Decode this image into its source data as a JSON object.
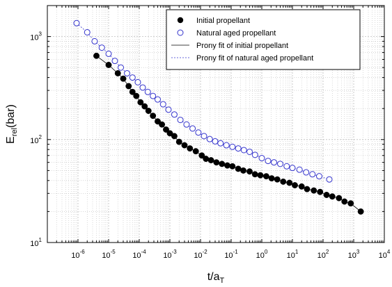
{
  "chart_data": {
    "type": "scatter",
    "title": "",
    "xlabel": "t/a",
    "xlabel_sub": "T",
    "ylabel": "E",
    "ylabel_sub": "rel",
    "ylabel_unit": "(bar)",
    "xscale": "log",
    "yscale": "log",
    "xlim": [
      1e-07,
      10000
    ],
    "ylim": [
      10,
      2000
    ],
    "x_ticks": [
      {
        "base": "10",
        "exp": "-6",
        "value": 1e-06
      },
      {
        "base": "10",
        "exp": "-5",
        "value": 1e-05
      },
      {
        "base": "10",
        "exp": "-4",
        "value": 0.0001
      },
      {
        "base": "10",
        "exp": "-3",
        "value": 0.001
      },
      {
        "base": "10",
        "exp": "-2",
        "value": 0.01
      },
      {
        "base": "10",
        "exp": "-1",
        "value": 0.1
      },
      {
        "base": "10",
        "exp": "0",
        "value": 1
      },
      {
        "base": "10",
        "exp": "1",
        "value": 10
      },
      {
        "base": "10",
        "exp": "2",
        "value": 100
      },
      {
        "base": "10",
        "exp": "3",
        "value": 1000
      },
      {
        "base": "10",
        "exp": "4",
        "value": 10000
      }
    ],
    "y_ticks": [
      {
        "base": "10",
        "exp": "1",
        "value": 10
      },
      {
        "base": "10",
        "exp": "2",
        "value": 100
      },
      {
        "base": "10",
        "exp": "3",
        "value": 1000
      }
    ],
    "grid": true,
    "legend_position": "top-right",
    "colors": {
      "initial": "#000000",
      "aged": "#3333cc",
      "axis": "#000000",
      "grid": "#bdbdbd"
    },
    "series": [
      {
        "name": "Initial propellant",
        "style": "filled-circle",
        "color": "#000000",
        "x": [
          4e-06,
          1e-05,
          2e-05,
          3e-05,
          4.5e-05,
          6e-05,
          8e-05,
          0.00011,
          0.00015,
          0.0002,
          0.00028,
          0.0004,
          0.00055,
          0.00075,
          0.001,
          0.0014,
          0.002,
          0.003,
          0.0045,
          0.007,
          0.011,
          0.015,
          0.022,
          0.033,
          0.05,
          0.075,
          0.11,
          0.17,
          0.25,
          0.4,
          0.6,
          0.9,
          1.4,
          2.1,
          3.2,
          5,
          8,
          12,
          20,
          30,
          50,
          80,
          130,
          200,
          330,
          500,
          800,
          1700
        ],
        "y": [
          650,
          530,
          440,
          390,
          330,
          290,
          265,
          230,
          210,
          190,
          170,
          150,
          140,
          125,
          115,
          108,
          95,
          88,
          82,
          77,
          70,
          65,
          63,
          60,
          58,
          56,
          55,
          52,
          50,
          49,
          46,
          45,
          44,
          42,
          41,
          39,
          38,
          36,
          35,
          33,
          32,
          31,
          29,
          28,
          27,
          25,
          24,
          20
        ]
      },
      {
        "name": "Natural aged propellant",
        "style": "open-circle",
        "color": "#3333cc",
        "x": [
          9e-07,
          2e-06,
          3.5e-06,
          6e-06,
          1e-05,
          1.6e-05,
          2.5e-05,
          4e-05,
          6e-05,
          9e-05,
          0.00013,
          0.00019,
          0.00028,
          0.0004,
          0.0006,
          0.0009,
          0.0014,
          0.0022,
          0.0035,
          0.0055,
          0.0085,
          0.013,
          0.02,
          0.03,
          0.045,
          0.07,
          0.11,
          0.17,
          0.26,
          0.4,
          0.6,
          1.0,
          1.6,
          2.5,
          4,
          6.5,
          10,
          17,
          28,
          45,
          75,
          160
        ],
        "y": [
          1350,
          1100,
          900,
          780,
          680,
          580,
          500,
          440,
          400,
          360,
          320,
          290,
          265,
          245,
          220,
          195,
          175,
          155,
          140,
          128,
          117,
          108,
          101,
          96,
          92,
          88,
          85,
          82,
          79,
          76,
          71,
          66,
          62,
          60,
          58,
          55,
          53,
          51,
          48,
          46,
          44,
          41
        ]
      },
      {
        "name": "Prony fit of initial propellant",
        "style": "solid-line",
        "color": "#000000"
      },
      {
        "name": "Prony fit of natural aged propellant",
        "style": "dotted-line",
        "color": "#3333cc"
      }
    ]
  }
}
